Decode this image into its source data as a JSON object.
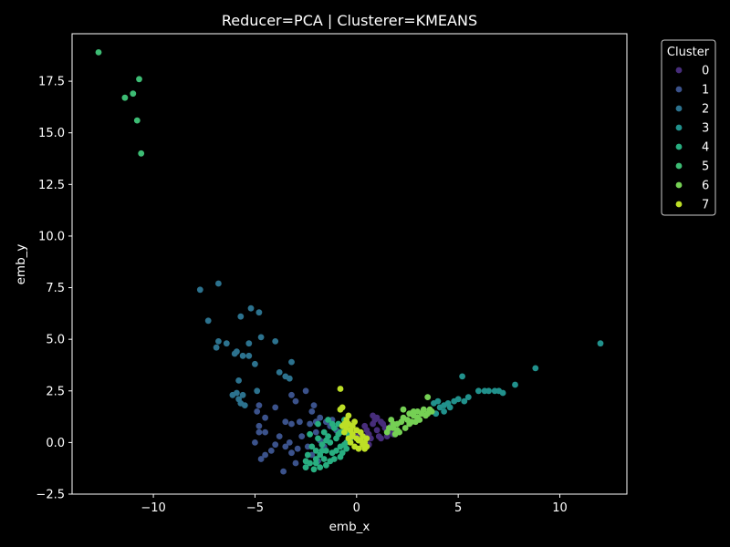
{
  "chart_data": {
    "type": "scatter",
    "title": "Reducer=PCA | Clusterer=KMEANS",
    "xlabel": "emb_x",
    "ylabel": "emb_y",
    "xlim": [
      -14.0,
      13.3
    ],
    "ylim": [
      -2.5,
      19.8
    ],
    "xticks": [
      -10,
      -5,
      0,
      5,
      10
    ],
    "yticks": [
      -2.5,
      0.0,
      2.5,
      5.0,
      7.5,
      10.0,
      12.5,
      15.0,
      17.5
    ],
    "ytick_labels": [
      "−2.5",
      "0.0",
      "2.5",
      "5.0",
      "7.5",
      "10.0",
      "12.5",
      "15.0",
      "17.5"
    ],
    "xtick_labels": [
      "−10",
      "−5",
      "0",
      "5",
      "10"
    ],
    "grid": false,
    "legend": {
      "title": "Cluster",
      "placement": "upper-right-outside"
    },
    "series": [
      {
        "name": "0",
        "color": "#472d7b",
        "points": [
          [
            0.0,
            0.3
          ],
          [
            0.2,
            0.5
          ],
          [
            0.4,
            0.8
          ],
          [
            0.6,
            0.4
          ],
          [
            0.8,
            0.9
          ],
          [
            1.0,
            0.6
          ],
          [
            1.2,
            1.0
          ],
          [
            1.4,
            0.7
          ],
          [
            1.6,
            0.5
          ],
          [
            0.3,
            0.0
          ],
          [
            0.7,
            0.2
          ],
          [
            1.1,
            0.3
          ],
          [
            0.5,
            0.6
          ],
          [
            0.9,
            1.1
          ],
          [
            1.3,
            0.9
          ],
          [
            1.0,
            1.2
          ],
          [
            0.8,
            1.3
          ],
          [
            1.5,
            0.3
          ],
          [
            1.7,
            0.8
          ],
          [
            0.1,
            0.1
          ],
          [
            0.6,
            -0.1
          ],
          [
            1.8,
            0.4
          ],
          [
            1.2,
            0.2
          ],
          [
            0.4,
            0.3
          ]
        ]
      },
      {
        "name": "1",
        "color": "#3b528b",
        "points": [
          [
            -4.8,
            1.8
          ],
          [
            -4.5,
            1.2
          ],
          [
            -4.0,
            1.7
          ],
          [
            -3.2,
            2.3
          ],
          [
            -3.0,
            2.0
          ],
          [
            -2.5,
            2.5
          ],
          [
            -2.2,
            1.5
          ],
          [
            -2.0,
            1.0
          ],
          [
            -1.8,
            1.2
          ],
          [
            -1.5,
            1.0
          ],
          [
            -1.2,
            1.1
          ],
          [
            -3.5,
            1.0
          ],
          [
            -3.2,
            0.9
          ],
          [
            -2.8,
            1.0
          ],
          [
            -4.5,
            0.5
          ],
          [
            -4.8,
            0.8
          ],
          [
            -4.2,
            -0.4
          ],
          [
            -5.0,
            0.0
          ],
          [
            -4.7,
            -0.8
          ],
          [
            -4.5,
            -0.6
          ],
          [
            -3.6,
            -1.4
          ],
          [
            -3.2,
            -0.5
          ],
          [
            -3.8,
            0.3
          ],
          [
            -3.3,
            0.0
          ],
          [
            -2.9,
            -0.3
          ],
          [
            -2.5,
            -1.2
          ],
          [
            -2.2,
            -0.6
          ],
          [
            -1.8,
            0.1
          ],
          [
            -1.6,
            -0.2
          ],
          [
            -1.3,
            0.8
          ],
          [
            -1.0,
            0.6
          ],
          [
            -2.7,
            0.3
          ],
          [
            -3.5,
            -0.2
          ],
          [
            -3.0,
            -1.0
          ],
          [
            -4.0,
            -0.1
          ],
          [
            -2.0,
            0.5
          ],
          [
            -1.9,
            -0.9
          ],
          [
            -2.4,
            -0.2
          ],
          [
            -4.9,
            1.5
          ],
          [
            -4.8,
            0.5
          ],
          [
            -2.1,
            1.8
          ],
          [
            -2.3,
            0.9
          ]
        ]
      },
      {
        "name": "2",
        "color": "#2c728e",
        "points": [
          [
            -7.7,
            7.4
          ],
          [
            -6.8,
            7.7
          ],
          [
            -7.3,
            5.9
          ],
          [
            -6.8,
            4.9
          ],
          [
            -6.9,
            4.6
          ],
          [
            -6.4,
            4.8
          ],
          [
            -6.0,
            4.3
          ],
          [
            -5.9,
            4.4
          ],
          [
            -5.6,
            4.2
          ],
          [
            -5.3,
            4.8
          ],
          [
            -5.3,
            4.2
          ],
          [
            -5.2,
            6.5
          ],
          [
            -5.7,
            6.1
          ],
          [
            -4.8,
            6.3
          ],
          [
            -4.7,
            5.1
          ],
          [
            -4.0,
            4.9
          ],
          [
            -5.0,
            3.8
          ],
          [
            -3.8,
            3.4
          ],
          [
            -3.2,
            3.9
          ],
          [
            -3.5,
            3.2
          ],
          [
            -3.3,
            3.1
          ],
          [
            -5.8,
            3.0
          ],
          [
            -6.1,
            2.3
          ],
          [
            -5.8,
            2.1
          ],
          [
            -5.6,
            2.3
          ],
          [
            -5.7,
            1.9
          ],
          [
            -5.9,
            2.4
          ],
          [
            -5.5,
            1.8
          ],
          [
            -4.9,
            2.5
          ]
        ]
      },
      {
        "name": "3",
        "color": "#21918c",
        "points": [
          [
            12.0,
            4.8
          ],
          [
            8.8,
            3.6
          ],
          [
            7.8,
            2.8
          ],
          [
            7.2,
            2.4
          ],
          [
            7.0,
            2.5
          ],
          [
            6.8,
            2.5
          ],
          [
            6.5,
            2.5
          ],
          [
            6.3,
            2.5
          ],
          [
            6.0,
            2.5
          ],
          [
            5.2,
            3.2
          ],
          [
            5.5,
            2.2
          ],
          [
            5.3,
            2.0
          ],
          [
            5.0,
            2.1
          ],
          [
            4.8,
            2.0
          ],
          [
            4.5,
            1.9
          ],
          [
            4.3,
            1.8
          ],
          [
            4.1,
            1.7
          ],
          [
            4.3,
            1.5
          ],
          [
            4.0,
            2.0
          ],
          [
            3.8,
            1.9
          ],
          [
            3.9,
            1.4
          ],
          [
            4.6,
            1.7
          ]
        ]
      },
      {
        "name": "4",
        "color": "#28ae80",
        "points": [
          [
            -2.5,
            -1.2
          ],
          [
            -2.3,
            -1.0
          ],
          [
            -2.0,
            -1.0
          ],
          [
            -1.8,
            -0.6
          ],
          [
            -1.5,
            -0.4
          ],
          [
            -1.3,
            0.0
          ],
          [
            -1.0,
            0.2
          ],
          [
            -0.8,
            0.5
          ],
          [
            -0.6,
            0.6
          ],
          [
            -0.8,
            -0.2
          ],
          [
            -1.2,
            -0.5
          ],
          [
            -1.6,
            -0.8
          ],
          [
            -2.0,
            -0.4
          ],
          [
            -1.7,
            -0.1
          ],
          [
            -1.4,
            0.3
          ],
          [
            -1.1,
            0.7
          ],
          [
            -0.9,
            0.9
          ],
          [
            -0.6,
            1.1
          ],
          [
            -1.4,
            1.1
          ],
          [
            -1.6,
            0.5
          ],
          [
            -1.9,
            0.2
          ],
          [
            -2.2,
            -0.2
          ],
          [
            -0.5,
            0.0
          ],
          [
            -0.4,
            0.4
          ],
          [
            -1.0,
            -0.4
          ],
          [
            -0.7,
            -0.5
          ],
          [
            -1.3,
            -0.9
          ],
          [
            -1.8,
            -1.2
          ],
          [
            -2.1,
            -1.3
          ],
          [
            -1.5,
            -1.1
          ],
          [
            -1.1,
            -0.8
          ],
          [
            -0.8,
            -0.7
          ],
          [
            -0.5,
            -0.3
          ],
          [
            -1.9,
            0.9
          ],
          [
            -2.3,
            0.4
          ],
          [
            -2.4,
            -0.6
          ],
          [
            -1.2,
            0.9
          ],
          [
            -0.9,
            0.4
          ],
          [
            -0.6,
            -0.1
          ],
          [
            -0.3,
            0.2
          ],
          [
            -1.5,
            0.1
          ],
          [
            -1.7,
            -0.4
          ],
          [
            -2.0,
            -0.8
          ],
          [
            -2.5,
            -0.9
          ]
        ]
      },
      {
        "name": "5",
        "color": "#3dbc74",
        "points": [
          [
            -12.7,
            18.9
          ],
          [
            -10.7,
            17.6
          ],
          [
            -11.0,
            16.9
          ],
          [
            -11.4,
            16.7
          ],
          [
            -10.8,
            15.6
          ],
          [
            -10.6,
            14.0
          ]
        ]
      },
      {
        "name": "6",
        "color": "#75d054",
        "points": [
          [
            1.5,
            0.5
          ],
          [
            1.8,
            0.7
          ],
          [
            2.0,
            0.9
          ],
          [
            2.2,
            1.0
          ],
          [
            2.5,
            1.1
          ],
          [
            2.8,
            1.3
          ],
          [
            3.0,
            1.2
          ],
          [
            3.2,
            1.4
          ],
          [
            3.5,
            1.4
          ],
          [
            3.7,
            1.5
          ],
          [
            3.3,
            1.6
          ],
          [
            3.0,
            1.5
          ],
          [
            2.7,
            1.0
          ],
          [
            2.4,
            0.7
          ],
          [
            2.1,
            0.5
          ],
          [
            1.8,
            0.9
          ],
          [
            1.6,
            0.7
          ],
          [
            2.3,
            1.2
          ],
          [
            2.6,
            1.4
          ],
          [
            2.9,
            1.0
          ],
          [
            3.4,
            1.3
          ],
          [
            3.5,
            2.2
          ],
          [
            2.3,
            1.6
          ],
          [
            1.7,
            1.1
          ],
          [
            2.0,
            0.6
          ],
          [
            2.6,
            0.9
          ],
          [
            3.1,
            1.1
          ],
          [
            3.6,
            1.6
          ],
          [
            2.8,
            1.5
          ],
          [
            1.9,
            0.4
          ]
        ]
      },
      {
        "name": "7",
        "color": "#bddf26",
        "points": [
          [
            -0.8,
            2.6
          ],
          [
            -0.7,
            1.7
          ],
          [
            -0.8,
            1.6
          ],
          [
            -0.4,
            1.3
          ],
          [
            -0.5,
            1.1
          ],
          [
            -0.6,
            0.9
          ],
          [
            -0.7,
            0.8
          ],
          [
            -0.5,
            0.7
          ],
          [
            -0.3,
            0.6
          ],
          [
            -0.2,
            0.4
          ],
          [
            0.0,
            0.2
          ],
          [
            0.2,
            0.1
          ],
          [
            0.4,
            0.0
          ],
          [
            0.5,
            -0.2
          ],
          [
            0.3,
            -0.1
          ],
          [
            0.1,
            -0.3
          ],
          [
            -0.1,
            -0.2
          ],
          [
            -0.3,
            0.0
          ],
          [
            -0.4,
            0.2
          ],
          [
            -0.2,
            0.8
          ],
          [
            0.0,
            0.6
          ],
          [
            0.2,
            0.5
          ],
          [
            -0.1,
            1.0
          ],
          [
            0.3,
            0.3
          ],
          [
            0.1,
            0.1
          ],
          [
            -0.2,
            0.3
          ],
          [
            0.5,
            0.2
          ],
          [
            -0.6,
            0.5
          ],
          [
            -0.4,
            0.9
          ],
          [
            0.4,
            -0.3
          ]
        ]
      }
    ]
  }
}
